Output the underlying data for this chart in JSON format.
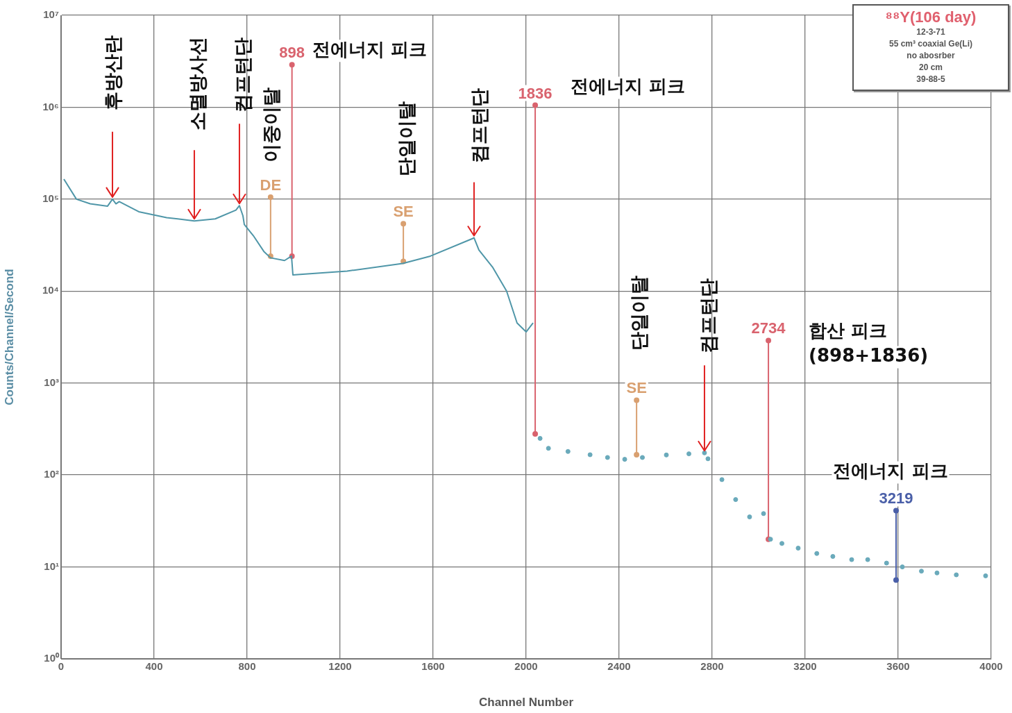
{
  "chart_data": {
    "type": "line",
    "title": "⁸⁸Y(106 day)",
    "xlabel": "Channel Number",
    "ylabel": "Counts/Channel/Second",
    "log": "y",
    "grid": true,
    "legend": false,
    "marker": "circle",
    "xlim": [
      0,
      4000
    ],
    "xticks": [
      0,
      400,
      800,
      1200,
      1600,
      2000,
      2400,
      2800,
      3200,
      3600,
      4000
    ],
    "ylim": [
      1,
      10000000
    ],
    "yticks": [
      {
        "value": 1,
        "label": "10⁰"
      },
      {
        "value": 10,
        "label": "10¹"
      },
      {
        "value": 100,
        "label": "10²"
      },
      {
        "value": 1000,
        "label": "10³"
      },
      {
        "value": 10000,
        "label": "10⁴"
      },
      {
        "value": 100000,
        "label": "10⁵"
      },
      {
        "value": 1000000,
        "label": "10⁶"
      },
      {
        "value": 10000000,
        "label": "10⁷"
      }
    ],
    "series": [
      {
        "marker": "none",
        "color": "#4f96a8",
        "x": [
          12,
          66,
          125,
          200,
          221,
          236,
          250,
          334,
          454,
          573,
          663,
          752,
          767,
          782,
          788,
          827,
          872,
          901,
          961,
          991,
          997,
          1230,
          1469,
          1588,
          1767,
          1776,
          1797,
          1857,
          1916,
          1961,
          2000,
          2030
        ],
        "values": [
          165000,
          100000,
          89000,
          84000,
          100000,
          89000,
          94000,
          73000,
          63000,
          58000,
          61000,
          76000,
          85000,
          66000,
          53000,
          40000,
          27000,
          23000,
          21500,
          24000,
          15000,
          16500,
          20000,
          24000,
          37000,
          38000,
          28000,
          18000,
          10000,
          4500,
          3600,
          4500
        ]
      },
      {
        "type": "scatter",
        "color": "#6aaabb",
        "x": [
          2060,
          2096,
          2180,
          2275,
          2350,
          2424,
          2500,
          2603,
          2700,
          2767,
          2782,
          2842,
          2901,
          2961,
          3021,
          3051,
          3100,
          3170,
          3250,
          3319,
          3400,
          3469,
          3550,
          3618,
          3700,
          3767,
          3850,
          3976
        ],
        "values": [
          250,
          195,
          180,
          166,
          155,
          148,
          155,
          165,
          170,
          174,
          150,
          89,
          54,
          35,
          38,
          20,
          18,
          16,
          14,
          13,
          12,
          12,
          11,
          10,
          9,
          8.6,
          8.2,
          8
        ]
      },
      {
        "name": "DE",
        "color": "#d9a070",
        "x": [
          901,
          901
        ],
        "values": [
          24000,
          105000
        ]
      },
      {
        "name": "898",
        "color": "#d9636e",
        "x": [
          993,
          993
        ],
        "values": [
          24000,
          2900000
        ]
      },
      {
        "name": "SE",
        "color": "#d9a070",
        "x": [
          1472,
          1472
        ],
        "values": [
          21000,
          54000
        ]
      },
      {
        "name": "1836",
        "color": "#d9636e",
        "x": [
          2039,
          2039
        ],
        "values": [
          280,
          1050000
        ]
      },
      {
        "name": "SE",
        "color": "#d9a070",
        "x": [
          2475,
          2475
        ],
        "values": [
          166,
          650
        ]
      },
      {
        "name": "2734",
        "color": "#d9636e",
        "x": [
          3042,
          3042
        ],
        "values": [
          20,
          2900
        ]
      },
      {
        "name": "3219",
        "color": "#4a5fa8",
        "x": [
          3591,
          3591
        ],
        "values": [
          7.2,
          41
        ]
      }
    ],
    "annotations": [
      {
        "text": "후방산란",
        "x": 221,
        "y": 100000
      },
      {
        "text": "소멸방사선",
        "x": 573,
        "y": 58000
      },
      {
        "text": "컴프턴단",
        "x": 767,
        "y": 85000
      },
      {
        "text": "이중이탈",
        "x": 901,
        "y": 105000
      },
      {
        "text": "전에너지 피크",
        "x": 993,
        "y": 2900000
      },
      {
        "text": "단일이탈",
        "x": 1472,
        "y": 54000
      },
      {
        "text": "컴프턴단",
        "x": 1776,
        "y": 38000
      },
      {
        "text": "전에너지 피크",
        "x": 2039,
        "y": 1050000
      },
      {
        "text": "단일이탈",
        "x": 2475,
        "y": 650
      },
      {
        "text": "컴프턴단",
        "x": 2767,
        "y": 174
      },
      {
        "text": "합산 피크\n(898+1836)",
        "x": 3042,
        "y": 2900
      },
      {
        "text": "전에너지 피크",
        "x": 3591,
        "y": 41
      },
      "12-3-71",
      "55 cm³ coaxial Ge(Li)",
      "no abosrber",
      "20 cm",
      "39-88-5"
    ]
  }
}
